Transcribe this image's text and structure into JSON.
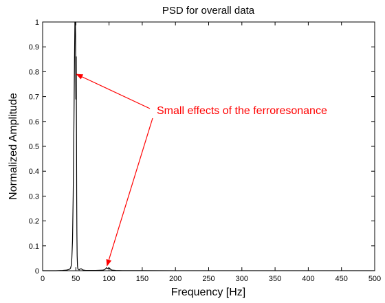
{
  "chart_data": {
    "type": "line",
    "title": "PSD for overall data",
    "xlabel": "Frequency [Hz]",
    "ylabel": "Normalized Amplitude",
    "xlim": [
      0,
      500
    ],
    "ylim": [
      0,
      1
    ],
    "xticks": [
      "0",
      "50",
      "100",
      "150",
      "200",
      "250",
      "300",
      "350",
      "400",
      "450",
      "500"
    ],
    "yticks": [
      "0",
      "0.1",
      "0.2",
      "0.3",
      "0.4",
      "0.5",
      "0.6",
      "0.7",
      "0.8",
      "0.9",
      "1"
    ],
    "grid": false,
    "series": [
      {
        "color": "#000000",
        "x": [
          0,
          20,
          30,
          35,
          40,
          42,
          43,
          44,
          45,
          46,
          47,
          48,
          48.6,
          49.2,
          49.6,
          50,
          50.3,
          50.6,
          51,
          51.3,
          51.6,
          52,
          52.5,
          53,
          54,
          55,
          56,
          58,
          60,
          62,
          65,
          70,
          80,
          90,
          93,
          95,
          96,
          97,
          98,
          99,
          100,
          101,
          102,
          103,
          105,
          110,
          120,
          150,
          200,
          250,
          300,
          350,
          400,
          450,
          500
        ],
        "y": [
          0,
          0,
          0.001,
          0.002,
          0.005,
          0.01,
          0.02,
          0.05,
          0.12,
          0.3,
          0.55,
          0.85,
          1.0,
          1.0,
          0.95,
          0.69,
          0.86,
          0.86,
          0.55,
          0.3,
          0.15,
          0.06,
          0.02,
          0.008,
          0.005,
          0.003,
          0.006,
          0.008,
          0.004,
          0.002,
          0.001,
          0.001,
          0.001,
          0.002,
          0.004,
          0.008,
          0.012,
          0.01,
          0.009,
          0.011,
          0.008,
          0.01,
          0.006,
          0.004,
          0.002,
          0.001,
          0.0005,
          0.0003,
          0.0002,
          0.0002,
          0.0001,
          0.0001,
          0.0001,
          0.0001,
          0.0001
        ]
      }
    ],
    "annotation": {
      "text": "Small effects of the ferroresonance",
      "color": "#ff0000",
      "arrow_targets": [
        {
          "x": 51,
          "y": 0.79
        },
        {
          "x": 97,
          "y": 0.02
        }
      ]
    }
  }
}
